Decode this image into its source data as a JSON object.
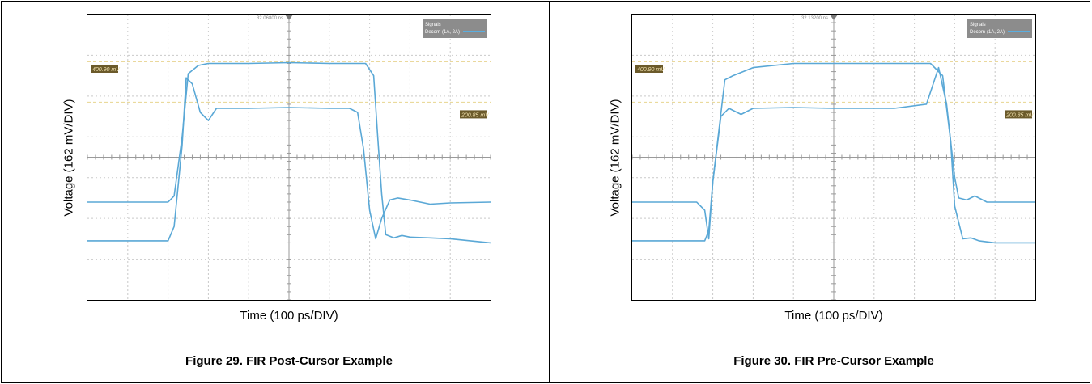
{
  "panels": [
    {
      "caption": "Figure 29.  FIR Post-Cursor Example",
      "chart_data": {
        "type": "line",
        "xlabel": "Time (100 ps/DIV)",
        "ylabel": "Voltage (162 mV/DIV)",
        "x_divisions": 10,
        "y_divisions": 7,
        "grid": true,
        "trigger_label": "32.06800 ns",
        "legend": {
          "title": "Signals",
          "entry": "Decom-(1A, 2A)",
          "placement": "top-right"
        },
        "cursors": [
          {
            "label": "400.90 mV",
            "y_div": 2.35,
            "color": "#d4b13a"
          },
          {
            "label": "200.85 mV",
            "y_div": 1.35,
            "color": "#e8d58f"
          }
        ],
        "series": [
          {
            "x": [
              0,
              2.0,
              2.15,
              2.35,
              2.5,
              2.75,
              3.0,
              4.0,
              5.0,
              6.0,
              6.9,
              7.1,
              7.2,
              7.3,
              7.4,
              7.6,
              7.8,
              8.0,
              8.5,
              9.0,
              10.0
            ],
            "y": [
              -1.1,
              -1.1,
              -0.95,
              0.5,
              2.05,
              2.25,
              2.3,
              2.3,
              2.32,
              2.3,
              2.3,
              2.0,
              0.5,
              -0.9,
              -1.9,
              -1.98,
              -1.92,
              -1.96,
              -1.98,
              -2.0,
              -2.1
            ]
          },
          {
            "x": [
              0,
              2.0,
              2.15,
              2.35,
              2.45,
              2.6,
              2.8,
              3.0,
              3.2,
              3.5,
              4.0,
              5.0,
              6.0,
              6.5,
              6.7,
              6.85,
              7.0,
              7.15,
              7.3,
              7.5,
              7.7,
              8.0,
              8.5,
              9.0,
              10.0
            ],
            "y": [
              -2.05,
              -2.05,
              -1.7,
              0.3,
              1.95,
              1.8,
              1.1,
              0.9,
              1.2,
              1.2,
              1.2,
              1.22,
              1.2,
              1.2,
              1.1,
              0.2,
              -1.3,
              -2.0,
              -1.5,
              -1.05,
              -1.0,
              -1.05,
              -1.15,
              -1.12,
              -1.1
            ]
          }
        ]
      }
    },
    {
      "caption": "Figure 30.  FIR Pre-Cursor Example",
      "chart_data": {
        "type": "line",
        "xlabel": "Time (100 ps/DIV)",
        "ylabel": "Voltage (162 mV/DIV)",
        "x_divisions": 10,
        "y_divisions": 7,
        "grid": true,
        "trigger_label": "32.13200 ns",
        "legend": {
          "title": "Signals",
          "entry": "Decom-(1A, 2A)",
          "placement": "top-right"
        },
        "cursors": [
          {
            "label": "400.90 mV",
            "y_div": 2.35,
            "color": "#d4b13a"
          },
          {
            "label": "200.85 mV",
            "y_div": 1.35,
            "color": "#e8d58f"
          }
        ],
        "series": [
          {
            "x": [
              0,
              1.6,
              1.8,
              1.9,
              2.0,
              2.3,
              2.5,
              3.0,
              4.0,
              5.0,
              6.0,
              6.5,
              7.4,
              7.7,
              7.9,
              8.0,
              8.2,
              8.4,
              8.6,
              9.0,
              10.0
            ],
            "y": [
              -1.1,
              -1.1,
              -1.3,
              -2.0,
              -0.6,
              1.9,
              2.0,
              2.2,
              2.3,
              2.3,
              2.3,
              2.3,
              2.3,
              2.0,
              0.4,
              -1.2,
              -2.0,
              -1.98,
              -2.05,
              -2.1,
              -2.1
            ]
          },
          {
            "x": [
              0,
              1.8,
              1.9,
              2.0,
              2.2,
              2.4,
              2.7,
              3.0,
              4.0,
              5.0,
              6.5,
              7.3,
              7.6,
              7.8,
              8.0,
              8.1,
              8.3,
              8.5,
              8.8,
              9.0,
              10.0
            ],
            "y": [
              -2.05,
              -2.05,
              -1.8,
              -0.6,
              1.0,
              1.2,
              1.05,
              1.2,
              1.22,
              1.2,
              1.2,
              1.3,
              2.2,
              1.3,
              -0.5,
              -1.0,
              -1.05,
              -0.95,
              -1.1,
              -1.1,
              -1.1
            ]
          }
        ]
      }
    }
  ]
}
